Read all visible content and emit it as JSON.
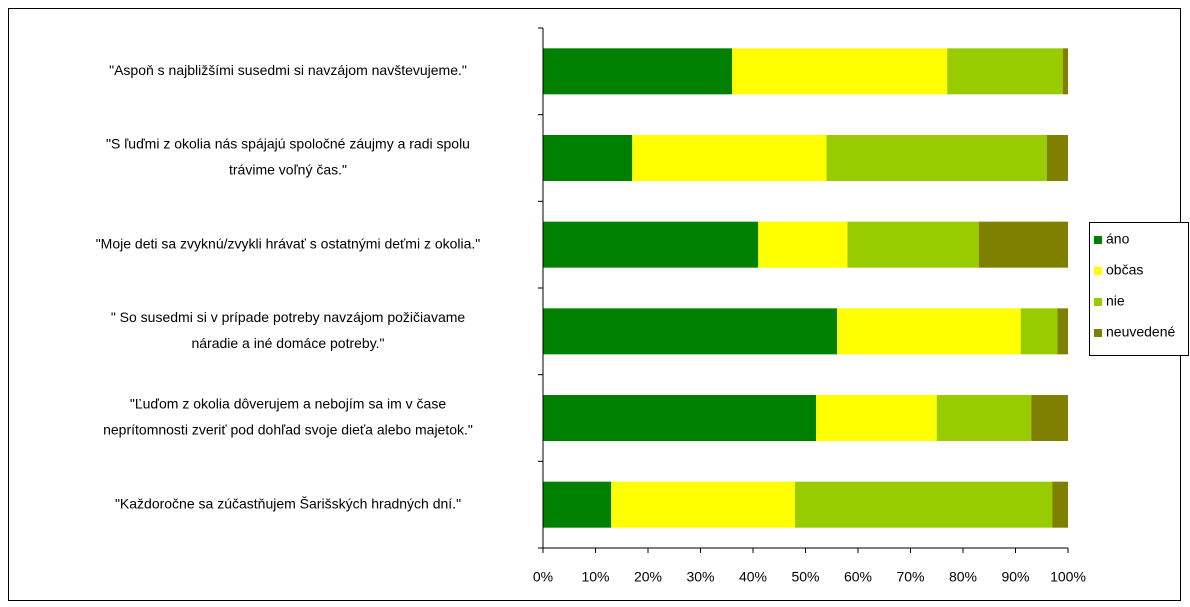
{
  "chart_data": {
    "type": "stacked_bar_horizontal",
    "categories": [
      [
        "\"Aspoň s najbližšími susedmi si navzájom navštevujeme.\""
      ],
      [
        "\"S ľuďmi z okolia nás spájajú spoločné záujmy a radi spolu",
        "trávime voľný čas.\""
      ],
      [
        "\"Moje deti sa zvyknú/zvykli hrávať s ostatnými deťmi z okolia.\""
      ],
      [
        "\" So susedmi si v prípade potreby navzájom požičiavame",
        "náradie a iné domáce potreby.\""
      ],
      [
        "\"Ľuďom z okolia dôverujem a nebojím sa im v čase",
        "neprítomnosti zveriť pod dohľad svoje dieťa alebo majetok.\""
      ],
      [
        "\"Každoročne sa zúčastňujem Šarišských hradných dní.\""
      ]
    ],
    "series": [
      {
        "name": "áno",
        "color": "#008000",
        "values": [
          36,
          17,
          41,
          56,
          52,
          13
        ]
      },
      {
        "name": "občas",
        "color": "#ffff00",
        "values": [
          41,
          37,
          17,
          35,
          23,
          35
        ]
      },
      {
        "name": "nie",
        "color": "#99cc00",
        "values": [
          22,
          42,
          25,
          7,
          18,
          49
        ]
      },
      {
        "name": "neuvedené",
        "color": "#808000",
        "values": [
          1,
          4,
          17,
          2,
          7,
          3
        ]
      }
    ],
    "xlim": [
      0,
      100
    ],
    "xticks": [
      {
        "value": 0,
        "label": "0%"
      },
      {
        "value": 10,
        "label": "10%"
      },
      {
        "value": 20,
        "label": "20%"
      },
      {
        "value": 30,
        "label": "30%"
      },
      {
        "value": 40,
        "label": "40%"
      },
      {
        "value": 50,
        "label": "50%"
      },
      {
        "value": 60,
        "label": "60%"
      },
      {
        "value": 70,
        "label": "70%"
      },
      {
        "value": 80,
        "label": "80%"
      },
      {
        "value": 90,
        "label": "90%"
      },
      {
        "value": 100,
        "label": "100%"
      }
    ],
    "grid": false,
    "legend": "right"
  }
}
